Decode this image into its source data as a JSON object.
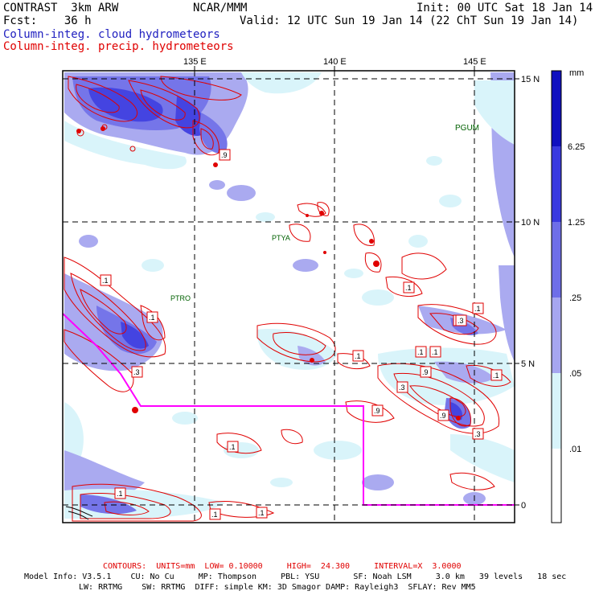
{
  "header": {
    "left_line1": "CONTRAST  3km ARW",
    "left_line2": "Fcst:    36 h",
    "center_line1": "NCAR/MMM",
    "right_line1": "Init: 00 UTC Sat 18 Jan 14",
    "right_line2": "Valid: 12 UTC Sun 19 Jan 14 (22 ChT Sun 19 Jan 14)",
    "legend_cloud": "Column-integ. cloud hydrometeors",
    "legend_precip": "Column-integ. precip. hydrometeors",
    "colors": {
      "cloud": "#2020c0",
      "precip": "#e00000"
    }
  },
  "map": {
    "lon_labels": [
      "135 E",
      "140 E",
      "145 E"
    ],
    "lat_labels": [
      "15 N",
      "10 N",
      "5 N",
      "0"
    ],
    "stations": [
      "PGUM",
      "PTYA",
      "PTRO"
    ],
    "contour_labels": [
      ".9",
      ".1",
      ".1",
      ".3",
      ".1",
      ".1",
      ".1",
      ".9",
      ".3",
      ".1",
      ".9",
      ".3",
      ".3",
      ".1",
      ".1",
      ".9",
      ".1",
      ".1",
      ".1",
      ".1",
      ".1"
    ],
    "boundary_color": "#ff00ff"
  },
  "colorbar": {
    "unit": "mm",
    "levels": [
      "6.25",
      "1.25",
      ".25",
      ".05",
      ".01"
    ],
    "colors": [
      "#1010c0",
      "#3a3ae0",
      "#6e6ee8",
      "#a6a6f0",
      "#d8f4fa",
      "#ffffff"
    ]
  },
  "footer": {
    "contours": "CONTOURS:  UNITS=mm  LOW= 0.10000     HIGH=  24.300     INTERVAL=X  3.0000",
    "model_line1": "Model Info: V3.5.1    CU: No Cu     MP: Thompson     PBL: YSU       SF: Noah LSM     3.0 km   39 levels   18 sec",
    "model_line2": "LW: RRTMG    SW: RRTMG  DIFF: simple KM: 3D Smagor DAMP: Rayleigh3  SFLAY: Rev MM5"
  }
}
